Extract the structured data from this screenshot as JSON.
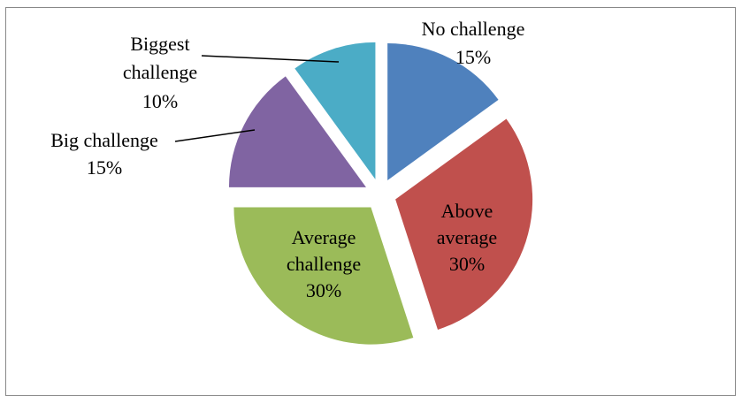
{
  "chart_data": {
    "type": "pie",
    "title": "",
    "slices": [
      {
        "label": "No challenge",
        "value": 15,
        "value_text": "15%",
        "color": "#4F81BD"
      },
      {
        "label": "Above average",
        "value": 30,
        "value_text": "30%",
        "color": "#C0504D"
      },
      {
        "label": "Average challenge",
        "value": 30,
        "value_text": "30%",
        "color": "#9BBB59"
      },
      {
        "label": "Big challenge",
        "value": 15,
        "value_text": "15%",
        "color": "#8064A2"
      },
      {
        "label": "Biggest challenge",
        "value": 10,
        "value_text": "10%",
        "color": "#4BACC6"
      }
    ],
    "exploded": true,
    "legend": "none",
    "data_labels": "category and percentage"
  }
}
